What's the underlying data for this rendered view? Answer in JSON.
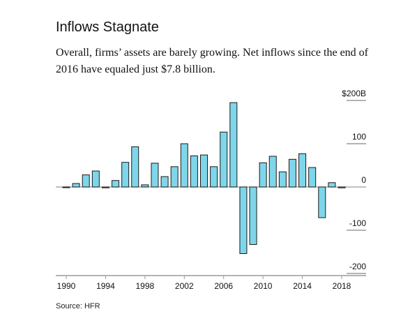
{
  "title": "Inflows Stagnate",
  "subtitle": "Overall, firms’ assets are barely growing. Net inflows since the end of 2016 have equaled just $7.8 billion.",
  "source": "Source: HFR",
  "colors": {
    "bar_fill": "#7fd6ea",
    "bar_stroke": "#1a1a1a",
    "axis": "#9a9a9a",
    "text": "#111111"
  },
  "chart_data": {
    "type": "bar",
    "x": [
      1990,
      1991,
      1992,
      1993,
      1994,
      1995,
      1996,
      1997,
      1998,
      1999,
      2000,
      2001,
      2002,
      2003,
      2004,
      2005,
      2006,
      2007,
      2008,
      2009,
      2010,
      2011,
      2012,
      2013,
      2014,
      2015,
      2016,
      2017,
      2018
    ],
    "values": [
      0,
      8,
      28,
      37,
      -2,
      15,
      57,
      93,
      5,
      55,
      24,
      47,
      100,
      72,
      74,
      47,
      127,
      195,
      -154,
      -133,
      56,
      71,
      35,
      64,
      77,
      45,
      -71,
      10,
      -2
    ],
    "xticks": [
      1990,
      1994,
      1998,
      2002,
      2006,
      2010,
      2014,
      2018
    ],
    "yticks": [
      200,
      100,
      0,
      -100,
      -200
    ],
    "ytick_labels": [
      "$200B",
      "100",
      "0",
      "-100",
      "-200"
    ],
    "ylim": [
      -200,
      200
    ],
    "grid": false,
    "xlabel": "",
    "ylabel": ""
  }
}
